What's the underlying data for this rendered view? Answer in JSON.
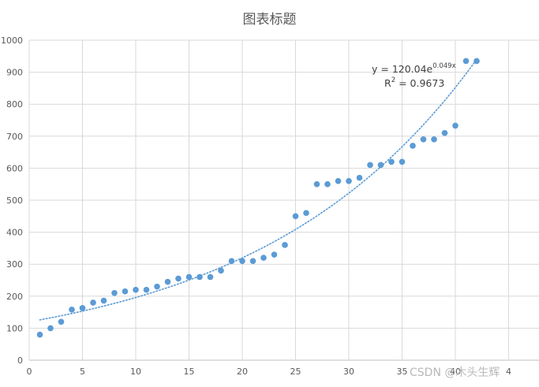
{
  "chart_data": {
    "type": "scatter",
    "title": "图表标题",
    "xlim": [
      0,
      48
    ],
    "ylim": [
      0,
      1000
    ],
    "x_ticks": [
      "0",
      "5",
      "10",
      "15",
      "20",
      "25",
      "30",
      "35",
      "40",
      "4"
    ],
    "y_ticks": [
      "0",
      "100",
      "200",
      "300",
      "400",
      "500",
      "600",
      "700",
      "800",
      "900",
      "1000"
    ],
    "grid": true,
    "series": [
      {
        "color": "#5B9BD5",
        "points": [
          [
            1,
            80
          ],
          [
            2,
            100
          ],
          [
            3,
            120
          ],
          [
            4,
            158
          ],
          [
            5,
            163
          ],
          [
            6,
            180
          ],
          [
            7,
            186
          ],
          [
            8,
            210
          ],
          [
            9,
            215
          ],
          [
            10,
            220
          ],
          [
            11,
            220
          ],
          [
            12,
            230
          ],
          [
            13,
            245
          ],
          [
            14,
            255
          ],
          [
            15,
            260
          ],
          [
            16,
            260
          ],
          [
            17,
            260
          ],
          [
            18,
            280
          ],
          [
            19,
            310
          ],
          [
            20,
            310
          ],
          [
            21,
            310
          ],
          [
            22,
            320
          ],
          [
            23,
            330
          ],
          [
            24,
            360
          ],
          [
            25,
            450
          ],
          [
            26,
            460
          ],
          [
            27,
            550
          ],
          [
            28,
            550
          ],
          [
            29,
            560
          ],
          [
            30,
            560
          ],
          [
            31,
            570
          ],
          [
            32,
            610
          ],
          [
            33,
            610
          ],
          [
            34,
            620
          ],
          [
            35,
            620
          ],
          [
            36,
            670
          ],
          [
            37,
            690
          ],
          [
            38,
            690
          ],
          [
            39,
            710
          ],
          [
            40,
            733
          ],
          [
            41,
            935
          ],
          [
            42,
            935
          ]
        ]
      }
    ],
    "trendline": {
      "type": "exponential",
      "a": 120.04,
      "b": 0.049,
      "x_range": [
        1,
        42
      ],
      "color": "#5B9BD5",
      "equation_main": "y = 120.04e",
      "equation_exp": "0.049x",
      "r2_prefix": "R",
      "r2_sup": "2",
      "r2_value": " = 0.9673"
    }
  },
  "watermark": "CSDN @木头生辉"
}
